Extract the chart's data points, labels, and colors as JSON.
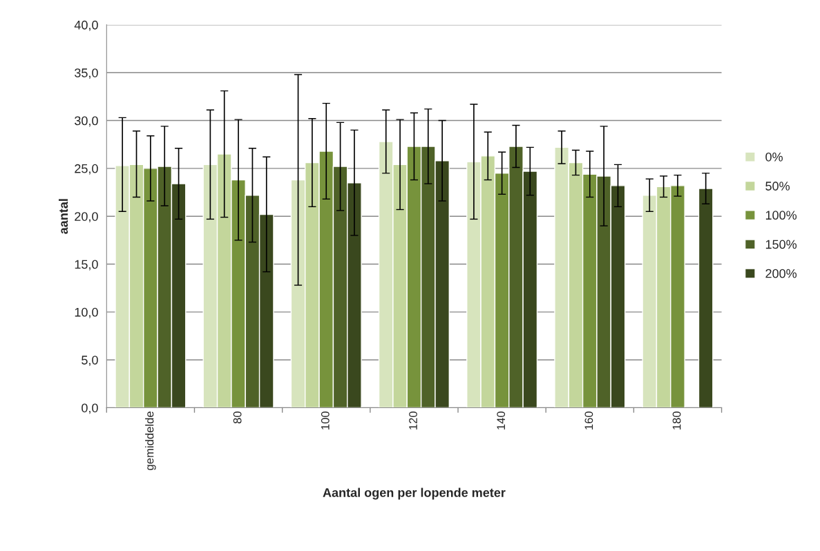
{
  "chart_data": {
    "type": "bar",
    "xlabel": "Aantal ogen per lopende meter",
    "ylabel": "aantal",
    "categories": [
      "gemiddelde",
      "80",
      "100",
      "120",
      "140",
      "160",
      "180"
    ],
    "series": [
      {
        "name": "0%",
        "color": "#d7e4bd",
        "values": [
          25.3,
          25.4,
          23.8,
          27.8,
          25.7,
          27.2,
          22.2
        ],
        "errors": [
          [
            20.5,
            30.3
          ],
          [
            19.7,
            31.1
          ],
          [
            12.8,
            34.8
          ],
          [
            24.5,
            31.1
          ],
          [
            19.7,
            31.7
          ],
          [
            25.5,
            28.9
          ],
          [
            20.5,
            23.9
          ]
        ]
      },
      {
        "name": "50%",
        "color": "#c3d69b",
        "values": [
          25.4,
          26.5,
          25.6,
          25.4,
          26.3,
          25.6,
          23.1
        ],
        "errors": [
          [
            22.0,
            28.9
          ],
          [
            19.9,
            33.1
          ],
          [
            21.0,
            30.2
          ],
          [
            20.7,
            30.1
          ],
          [
            23.8,
            28.8
          ],
          [
            24.3,
            26.9
          ],
          [
            22.0,
            24.2
          ]
        ]
      },
      {
        "name": "100%",
        "color": "#77933c",
        "values": [
          25.0,
          23.8,
          26.8,
          27.3,
          24.5,
          24.4,
          23.2
        ],
        "errors": [
          [
            21.6,
            28.4
          ],
          [
            17.5,
            30.1
          ],
          [
            21.8,
            31.8
          ],
          [
            23.8,
            30.8
          ],
          [
            22.3,
            26.7
          ],
          [
            22.0,
            26.8
          ],
          [
            22.1,
            24.3
          ]
        ]
      },
      {
        "name": "150%",
        "color": "#4f6228",
        "values": [
          25.2,
          22.2,
          25.2,
          27.3,
          27.3,
          24.2,
          null
        ],
        "errors": [
          [
            21.1,
            29.4
          ],
          [
            17.3,
            27.1
          ],
          [
            20.6,
            29.8
          ],
          [
            23.4,
            31.2
          ],
          [
            25.1,
            29.5
          ],
          [
            19.0,
            29.4
          ],
          null
        ]
      },
      {
        "name": "200%",
        "color": "#3a481e",
        "values": [
          23.4,
          20.2,
          23.5,
          25.8,
          24.7,
          23.2,
          22.9
        ],
        "errors": [
          [
            19.7,
            27.1
          ],
          [
            14.2,
            26.2
          ],
          [
            18.0,
            29.0
          ],
          [
            21.6,
            30.0
          ],
          [
            22.2,
            27.2
          ],
          [
            21.0,
            25.4
          ],
          [
            21.3,
            24.5
          ]
        ]
      }
    ],
    "ylim": [
      0,
      40
    ],
    "yticks": [
      {
        "value": 0,
        "label": "0,0"
      },
      {
        "value": 5,
        "label": "5,0"
      },
      {
        "value": 10,
        "label": "10,0"
      },
      {
        "value": 15,
        "label": "15,0"
      },
      {
        "value": 20,
        "label": "20,0"
      },
      {
        "value": 25,
        "label": "25,0"
      },
      {
        "value": 30,
        "label": "30,0"
      },
      {
        "value": 35,
        "label": "35,0"
      },
      {
        "value": 40,
        "label": "40,0"
      }
    ],
    "grid": "y",
    "legend": "right"
  }
}
